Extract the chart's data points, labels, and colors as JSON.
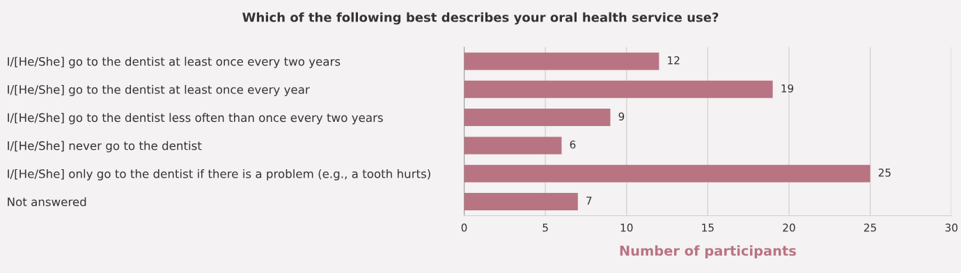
{
  "chart_data": {
    "type": "bar",
    "orientation": "horizontal",
    "title": "Which of the following best describes your oral health service use?",
    "categories": [
      "I/[He/She] go to the dentist at least once every two years",
      "I/[He/She] go to the dentist at least once every year",
      "I/[He/She] go to the dentist less often than once every two years",
      "I/[He/She] never go to the dentist",
      "I/[He/She] only go to the dentist if there is a problem (e.g., a tooth hurts)",
      "Not answered"
    ],
    "values": [
      12,
      19,
      9,
      6,
      25,
      7
    ],
    "color": "#b87482",
    "xlabel": "Number of participants",
    "xlim": [
      0,
      30
    ],
    "xticks": [
      0,
      5,
      10,
      15,
      20,
      25,
      30
    ],
    "grid": "x",
    "data_labels": true,
    "legend": false
  }
}
